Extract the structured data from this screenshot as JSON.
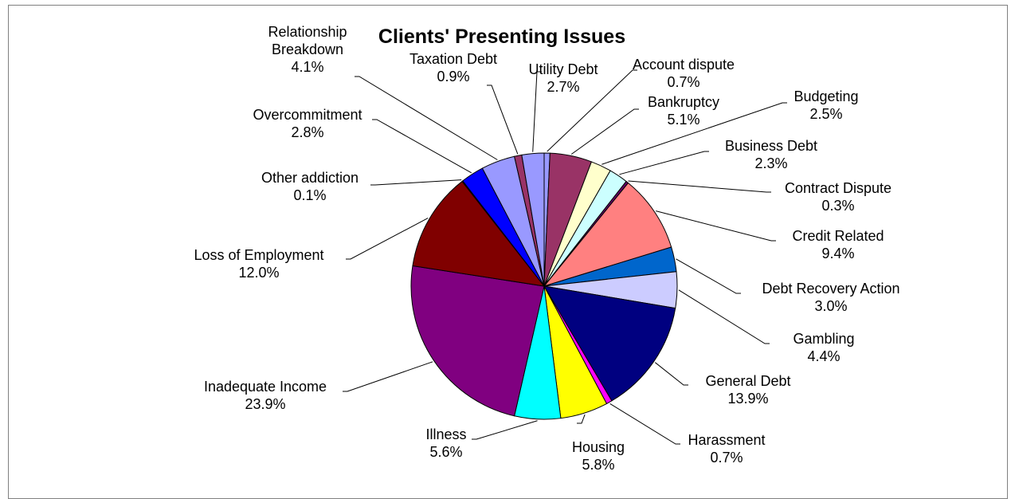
{
  "chart_data": {
    "type": "pie",
    "title": "Clients' Presenting Issues",
    "slices": [
      {
        "name": "Account dispute",
        "label": "Account dispute",
        "pct": "0.7%",
        "value": 0.7,
        "color": "#9999ff"
      },
      {
        "name": "Bankruptcy",
        "label": "Bankruptcy",
        "pct": "5.1%",
        "value": 5.1,
        "color": "#993366"
      },
      {
        "name": "Budgeting",
        "label": "Budgeting",
        "pct": "2.5%",
        "value": 2.5,
        "color": "#ffffcc"
      },
      {
        "name": "Business Debt",
        "label": "Business Debt",
        "pct": "2.3%",
        "value": 2.3,
        "color": "#ccffff"
      },
      {
        "name": "Contract Dispute",
        "label": "Contract Dispute",
        "pct": "0.3%",
        "value": 0.3,
        "color": "#660066"
      },
      {
        "name": "Credit Related",
        "label": "Credit Related",
        "pct": "9.4%",
        "value": 9.4,
        "color": "#ff8080"
      },
      {
        "name": "Debt Recovery Action",
        "label": "Debt Recovery Action",
        "pct": "3.0%",
        "value": 3.0,
        "color": "#0066cc"
      },
      {
        "name": "Gambling",
        "label": "Gambling",
        "pct": "4.4%",
        "value": 4.4,
        "color": "#ccccff"
      },
      {
        "name": "General Debt",
        "label": "General Debt",
        "pct": "13.9%",
        "value": 13.9,
        "color": "#000080"
      },
      {
        "name": "Harassment",
        "label": "Harassment",
        "pct": "0.7%",
        "value": 0.7,
        "color": "#ff00ff"
      },
      {
        "name": "Housing",
        "label": "Housing",
        "pct": "5.8%",
        "value": 5.8,
        "color": "#ffff00"
      },
      {
        "name": "Illness",
        "label": "Illness",
        "pct": "5.6%",
        "value": 5.6,
        "color": "#00ffff"
      },
      {
        "name": "Inadequate Income",
        "label": "Inadequate Income",
        "pct": "23.9%",
        "value": 23.9,
        "color": "#800080"
      },
      {
        "name": "Loss of Employment",
        "label": "Loss of Employment",
        "pct": "12.0%",
        "value": 12.0,
        "color": "#800000"
      },
      {
        "name": "Other addiction",
        "label": "Other addiction",
        "pct": "0.1%",
        "value": 0.1,
        "color": "#008080"
      },
      {
        "name": "Overcommitment",
        "label": "Overcommitment",
        "pct": "2.8%",
        "value": 2.8,
        "color": "#0000ff"
      },
      {
        "name": "Relationship Breakdown",
        "label": "Relationship Breakdown",
        "pct": "4.1%",
        "value": 4.1,
        "color": "#9999ff"
      },
      {
        "name": "Taxation Debt",
        "label": "Taxation Debt",
        "pct": "0.9%",
        "value": 0.9,
        "color": "#993366"
      },
      {
        "name": "Utility Debt",
        "label": "Utility Debt",
        "pct": "2.7%",
        "value": 2.7,
        "color": "#9999ff"
      }
    ]
  }
}
